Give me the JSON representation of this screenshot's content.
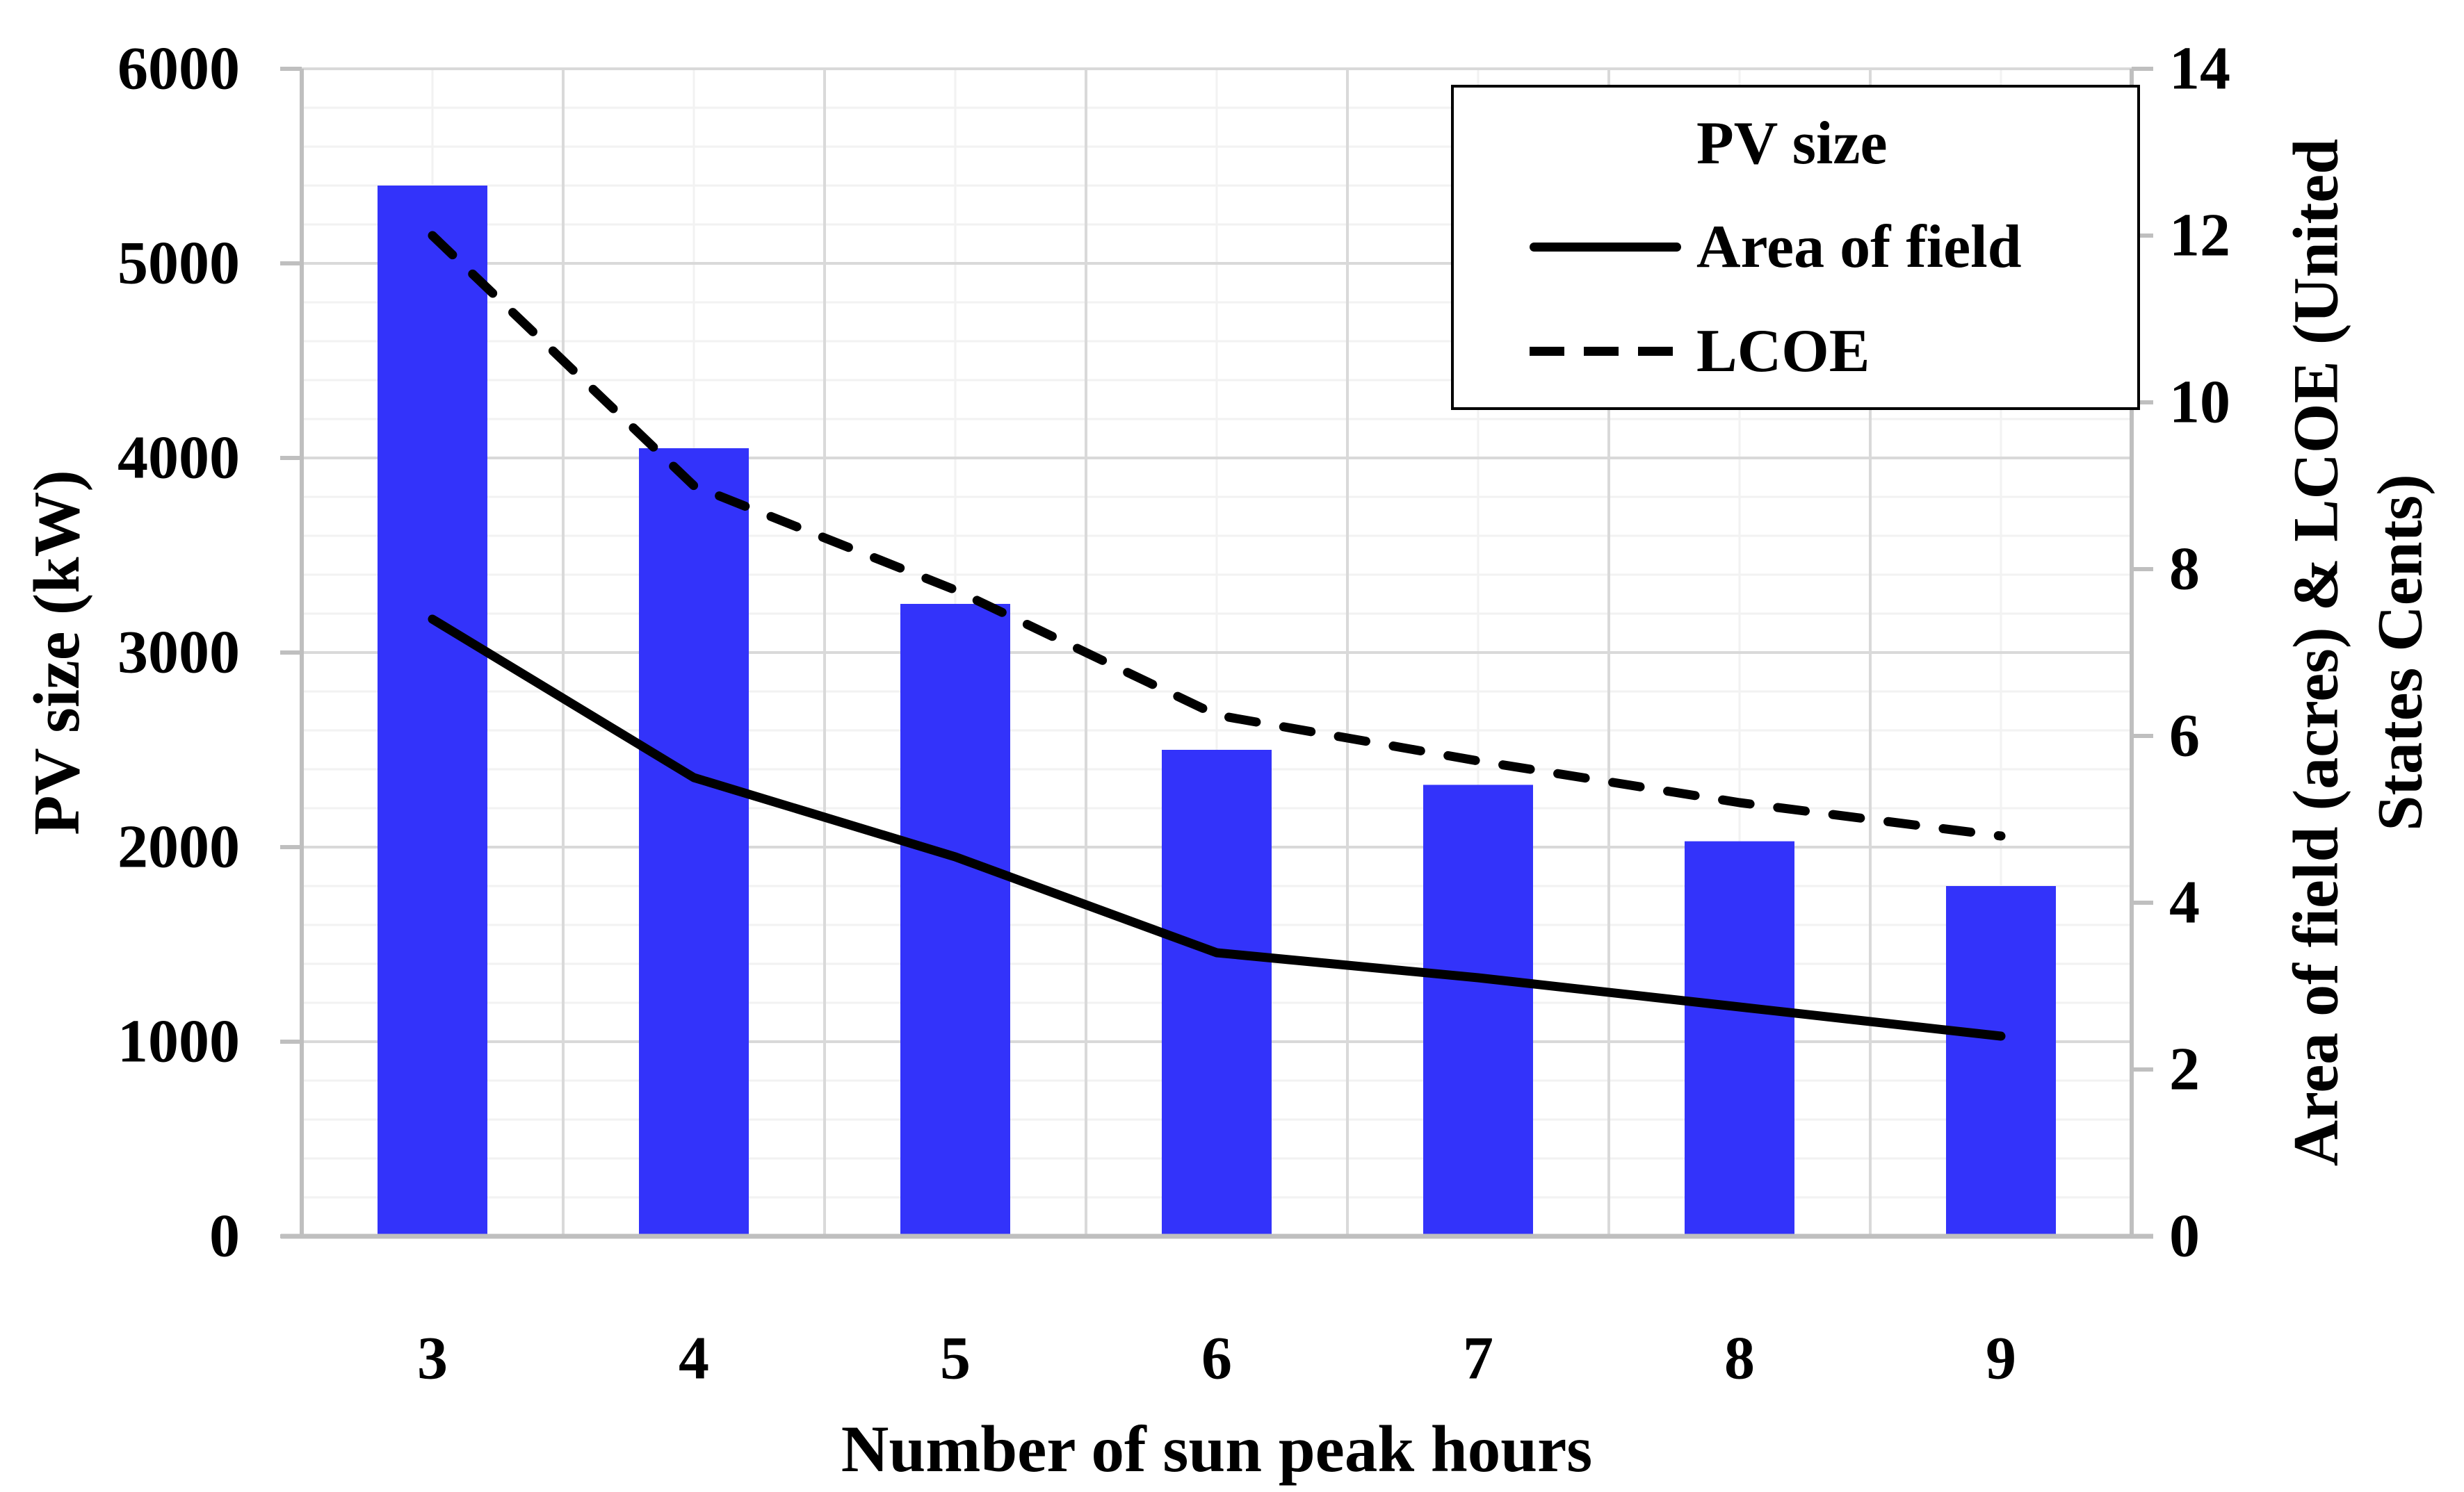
{
  "chart_data": {
    "type": "bar",
    "subtype": "bar-line-combo",
    "categories": [
      "3",
      "4",
      "5",
      "6",
      "7",
      "8",
      "9"
    ],
    "series": [
      {
        "name": "PV size",
        "type": "bar",
        "axis": "left",
        "values": [
          5400,
          4050,
          3250,
          2500,
          2320,
          2030,
          1800
        ]
      },
      {
        "name": "Area of field",
        "type": "line",
        "style": "solid",
        "axis": "right",
        "values": [
          7.4,
          5.5,
          4.55,
          3.4,
          3.1,
          2.75,
          2.4
        ]
      },
      {
        "name": "LCOE",
        "type": "line",
        "style": "dashed",
        "axis": "right",
        "values": [
          12.0,
          9.0,
          7.75,
          6.25,
          5.7,
          5.2,
          4.8
        ]
      }
    ],
    "left_axis": {
      "title": "PV size (kW)",
      "min": 0,
      "max": 6000,
      "major_step": 1000,
      "minor_step": 200,
      "tick_labels": [
        "0",
        "1000",
        "2000",
        "3000",
        "4000",
        "5000",
        "6000"
      ]
    },
    "right_axis": {
      "title_line1": "Area of field (acres) & LCOE (United",
      "title_line2": "States Cents)",
      "min": 0,
      "max": 14,
      "major_step": 2,
      "tick_labels": [
        "0",
        "2",
        "4",
        "6",
        "8",
        "10",
        "12",
        "14"
      ]
    },
    "x_axis": {
      "title": "Number of sun peak hours",
      "tick_labels": [
        "3",
        "4",
        "5",
        "6",
        "7",
        "8",
        "9"
      ]
    },
    "legend": {
      "position": "top-right",
      "items": [
        {
          "label": "PV size"
        },
        {
          "label": "Area of field"
        },
        {
          "label": "LCOE"
        }
      ]
    },
    "grid": true
  },
  "colors": {
    "bar": "#3333FA",
    "line": "#000000",
    "grid_major": "#D9D9D9",
    "grid_minor": "#F2F2F2",
    "axis": "#BFBFBF",
    "legend_border": "#000000",
    "background": "#FFFFFF",
    "text": "#000000"
  }
}
